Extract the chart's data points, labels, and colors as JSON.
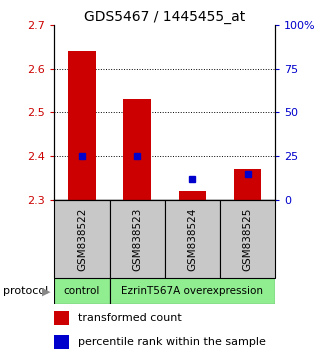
{
  "title": "GDS5467 / 1445455_at",
  "samples": [
    "GSM838522",
    "GSM838523",
    "GSM838524",
    "GSM838525"
  ],
  "red_values": [
    2.64,
    2.53,
    2.32,
    2.37
  ],
  "blue_pct": [
    25,
    25,
    12,
    15
  ],
  "ylim_left": [
    2.3,
    2.7
  ],
  "ylim_right": [
    0,
    100
  ],
  "yticks_left": [
    2.3,
    2.4,
    2.5,
    2.6,
    2.7
  ],
  "yticks_right": [
    0,
    25,
    50,
    75,
    100
  ],
  "ytick_right_labels": [
    "0",
    "25",
    "50",
    "75",
    "100%"
  ],
  "red_color": "#cc0000",
  "blue_color": "#0000cc",
  "bar_width": 0.5,
  "green_color": "#90ee90",
  "sample_box_color": "#c8c8c8",
  "background_color": "#ffffff",
  "title_fontsize": 10,
  "tick_fontsize": 8,
  "label_fontsize": 8
}
